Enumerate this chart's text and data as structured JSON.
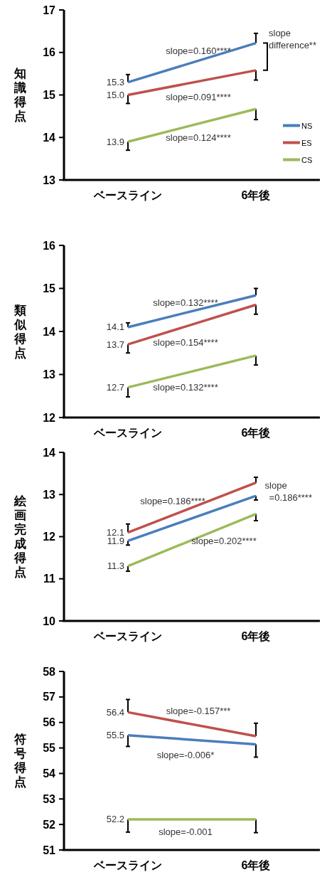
{
  "chart_data": [
    {
      "type": "line",
      "ylabel": "知識得点",
      "categories": [
        "ベースライン",
        "6年後"
      ],
      "ylim": [
        13,
        17
      ],
      "yticks": [
        13,
        14,
        15,
        16,
        17
      ],
      "grid": false,
      "legend": "right",
      "marker": "none",
      "series": [
        {
          "name": "NS",
          "color": "#4a7ebb",
          "values": [
            15.3,
            16.22
          ],
          "errors": [
            [
              15.3,
              15.48
            ],
            [
              16.22,
              16.45
            ]
          ],
          "value_labels": [
            "15.3",
            null
          ]
        },
        {
          "name": "ES",
          "color": "#c0504d",
          "values": [
            15.0,
            15.58
          ],
          "errors": [
            [
              14.8,
              15.0
            ],
            [
              15.35,
              15.58
            ]
          ],
          "value_labels": [
            "15.0",
            null
          ]
        },
        {
          "name": "CS",
          "color": "#9bbb59",
          "values": [
            13.9,
            14.67
          ],
          "errors": [
            [
              13.7,
              13.9
            ],
            [
              14.42,
              14.67
            ]
          ],
          "value_labels": [
            "13.9",
            null
          ]
        }
      ],
      "annotations": [
        "slope=0.160****",
        "slope=0.091****",
        "slope=0.124****",
        "slope difference**"
      ]
    },
    {
      "type": "line",
      "ylabel": "類似得点",
      "categories": [
        "ベースライン",
        "6年後"
      ],
      "ylim": [
        12,
        16
      ],
      "yticks": [
        12,
        13,
        14,
        15,
        16
      ],
      "grid": false,
      "legend": false,
      "marker": "none",
      "series": [
        {
          "color": "#4a7ebb",
          "values": [
            14.1,
            14.84
          ],
          "errors": [
            [
              14.1,
              14.2
            ],
            [
              14.84,
              15.0
            ]
          ],
          "value_labels": [
            "14.1",
            null
          ]
        },
        {
          "color": "#c0504d",
          "values": [
            13.7,
            14.62
          ],
          "errors": [
            [
              13.5,
              13.7
            ],
            [
              14.4,
              14.62
            ]
          ],
          "value_labels": [
            "13.7",
            null
          ]
        },
        {
          "color": "#9bbb59",
          "values": [
            12.7,
            13.44
          ],
          "errors": [
            [
              12.48,
              12.7
            ],
            [
              13.22,
              13.44
            ]
          ],
          "value_labels": [
            "12.7",
            null
          ]
        }
      ],
      "annotations": [
        "slope=0.132****",
        "slope=0.154****",
        "slope=0.132****"
      ]
    },
    {
      "type": "line",
      "ylabel": "絵画完成得点",
      "categories": [
        "ベースライン",
        "6年後"
      ],
      "ylim": [
        10,
        14
      ],
      "yticks": [
        10,
        11,
        12,
        13,
        14
      ],
      "grid": false,
      "legend": false,
      "marker": "none",
      "series": [
        {
          "color": "#4a7ebb",
          "values": [
            11.9,
            12.97
          ],
          "errors": [
            [
              11.8,
              11.9
            ],
            [
              12.87,
              12.97
            ]
          ],
          "value_labels": [
            "11.9",
            null
          ]
        },
        {
          "color": "#c0504d",
          "values": [
            12.1,
            13.28
          ],
          "errors": [
            [
              12.1,
              12.3
            ],
            [
              13.28,
              13.41
            ]
          ],
          "value_labels": [
            "12.1",
            null
          ]
        },
        {
          "color": "#9bbb59",
          "values": [
            11.3,
            12.54
          ],
          "errors": [
            [
              11.18,
              11.3
            ],
            [
              12.38,
              12.54
            ]
          ],
          "value_labels": [
            "11.3",
            null
          ]
        }
      ],
      "annotations": [
        "slope=0.186****",
        "slope =0.186****",
        "slope=0.202****"
      ]
    },
    {
      "type": "line",
      "ylabel": "符号得点",
      "categories": [
        "ベースライン",
        "6年後"
      ],
      "ylim": [
        51,
        58
      ],
      "yticks": [
        51,
        52,
        53,
        54,
        55,
        56,
        57,
        58
      ],
      "grid": false,
      "legend": false,
      "marker": "none",
      "series": [
        {
          "color": "#4a7ebb",
          "values": [
            55.5,
            55.14
          ],
          "errors": [
            [
              55.06,
              55.5
            ],
            [
              54.64,
              55.14
            ]
          ],
          "value_labels": [
            "55.5",
            null
          ]
        },
        {
          "color": "#c0504d",
          "values": [
            56.4,
            55.46
          ],
          "errors": [
            [
              56.4,
              56.9
            ],
            [
              55.46,
              55.97
            ]
          ],
          "value_labels": [
            "56.4",
            null
          ]
        },
        {
          "color": "#9bbb59",
          "values": [
            52.2,
            52.2
          ],
          "errors": [
            [
              51.7,
              52.2
            ],
            [
              51.68,
              52.2
            ]
          ],
          "value_labels": [
            "52.2",
            null
          ]
        }
      ],
      "annotations": [
        "slope=-0.157***",
        "slope=-0.006*",
        "slope=-0.001"
      ]
    }
  ]
}
